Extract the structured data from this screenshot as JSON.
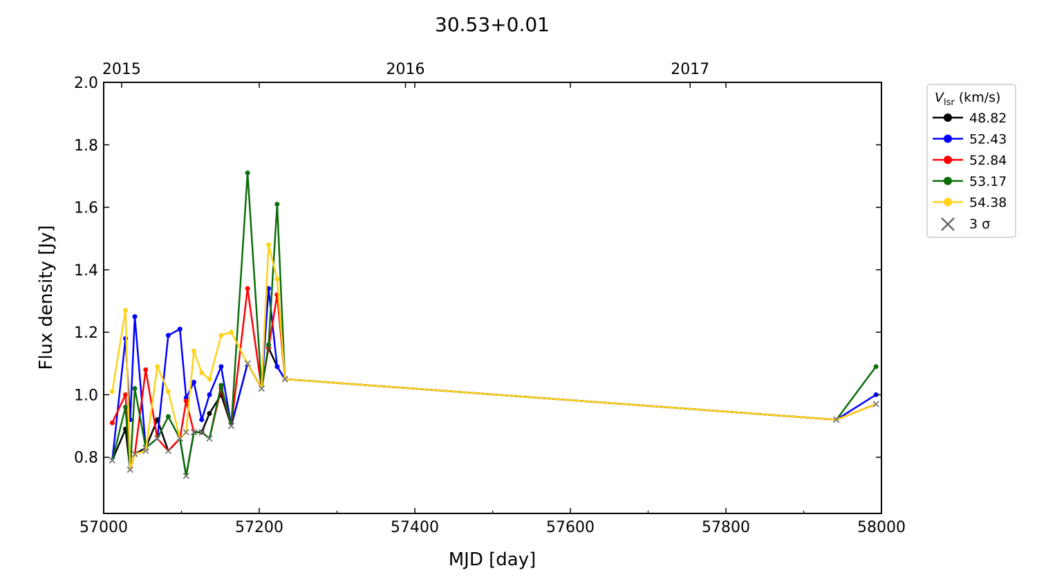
{
  "chart_data": {
    "type": "line",
    "title": "30.53+0.01",
    "xlabel": "MJD [day]",
    "ylabel": "Flux density [Jy]",
    "xlim": [
      57000,
      58000
    ],
    "ylim": [
      0.62,
      2.0
    ],
    "x_ticks": [
      "57000",
      "57200",
      "57400",
      "57600",
      "57800",
      "58000"
    ],
    "y_ticks": [
      "0.8",
      "1.0",
      "1.2",
      "1.4",
      "1.6",
      "1.8",
      "2.0"
    ],
    "top_axis_year_labels": [
      "2015",
      "2016",
      "2017"
    ],
    "legend_title": "V_lsr (km/s)",
    "legend_title_main": "V",
    "legend_title_sub": "lsr",
    "legend_title_rest": " (km/s)",
    "sigma_label": "3 σ",
    "legend_position": "right, outside plot, top",
    "grid": false,
    "x": [
      57011,
      57028,
      57034,
      57040,
      57054,
      57069,
      57083,
      57098,
      57106,
      57116,
      57126,
      57136,
      57151,
      57164,
      57185,
      57203,
      57212,
      57223,
      57233,
      57942,
      57993
    ],
    "series": [
      {
        "name": "48.82",
        "color": "#000000",
        "values": [
          0.79,
          0.89,
          0.76,
          0.81,
          0.83,
          0.92,
          0.82,
          0.86,
          0.74,
          0.88,
          0.88,
          0.94,
          1.0,
          0.9,
          1.1,
          1.02,
          1.15,
          1.09,
          1.05,
          0.92,
          0.97
        ],
        "upper_limit": [
          true,
          false,
          true,
          true,
          true,
          false,
          true,
          true,
          true,
          true,
          false,
          false,
          false,
          true,
          true,
          true,
          false,
          false,
          true,
          true,
          true
        ]
      },
      {
        "name": "52.43",
        "color": "#0000ff",
        "values": [
          0.79,
          1.18,
          0.92,
          1.25,
          0.83,
          0.86,
          1.19,
          1.21,
          0.99,
          1.04,
          0.92,
          1.0,
          1.09,
          0.9,
          1.1,
          1.02,
          1.34,
          1.09,
          1.05,
          0.92,
          1.0
        ],
        "upper_limit": [
          true,
          false,
          false,
          false,
          true,
          true,
          false,
          false,
          false,
          false,
          false,
          false,
          false,
          true,
          true,
          true,
          false,
          false,
          true,
          true,
          false
        ]
      },
      {
        "name": "52.84",
        "color": "#ff0000",
        "values": [
          0.91,
          1.0,
          0.76,
          0.81,
          1.08,
          0.86,
          0.82,
          0.86,
          0.98,
          0.88,
          0.88,
          0.86,
          1.02,
          0.9,
          1.34,
          1.02,
          1.15,
          1.32,
          1.05,
          0.92,
          0.97
        ],
        "upper_limit": [
          false,
          false,
          true,
          true,
          false,
          true,
          true,
          true,
          false,
          true,
          true,
          true,
          false,
          true,
          false,
          true,
          false,
          false,
          true,
          true,
          true
        ]
      },
      {
        "name": "53.17",
        "color": "#0b6e0b",
        "values": [
          0.79,
          0.96,
          0.76,
          1.02,
          0.83,
          0.86,
          0.93,
          0.86,
          0.74,
          0.88,
          0.88,
          0.86,
          1.03,
          0.9,
          1.71,
          1.02,
          1.16,
          1.61,
          1.05,
          0.92,
          1.09
        ],
        "upper_limit": [
          true,
          false,
          true,
          false,
          true,
          true,
          false,
          true,
          true,
          true,
          true,
          true,
          false,
          true,
          false,
          true,
          false,
          false,
          true,
          true,
          false
        ]
      },
      {
        "name": "54.38",
        "color": "#ffd21a",
        "values": [
          1.01,
          1.27,
          0.76,
          0.81,
          0.82,
          1.09,
          1.01,
          0.86,
          0.88,
          1.14,
          1.07,
          1.05,
          1.19,
          1.2,
          1.1,
          1.02,
          1.48,
          1.37,
          1.05,
          0.92,
          0.97
        ],
        "upper_limit": [
          false,
          false,
          true,
          true,
          true,
          false,
          false,
          true,
          true,
          false,
          false,
          false,
          false,
          false,
          true,
          true,
          false,
          false,
          true,
          true,
          true
        ]
      }
    ]
  }
}
